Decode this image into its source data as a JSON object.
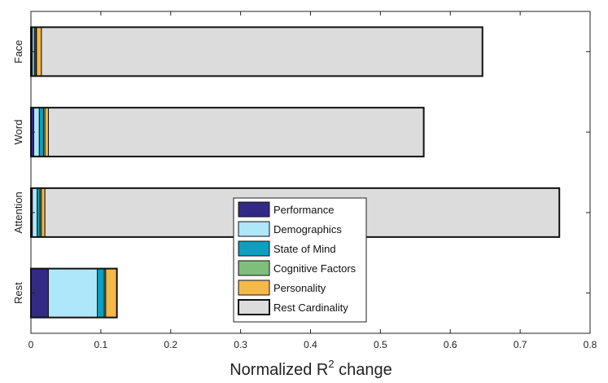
{
  "chart_data": {
    "type": "bar",
    "orientation": "horizontal",
    "stacked": true,
    "title": "",
    "xlabel": "Normalized R",
    "xlabel_superscript": "2",
    "xlabel_suffix": " change",
    "ylabel": "",
    "xlim": [
      0,
      0.8
    ],
    "xticks": [
      "0",
      "0.1",
      "0.2",
      "0.3",
      "0.4",
      "0.5",
      "0.6",
      "0.7",
      "0.8"
    ],
    "categories": [
      "Face",
      "Word",
      "Attention",
      "Rest"
    ],
    "series": [
      {
        "name": "Performance",
        "color": "#332a86",
        "values": [
          0.002,
          0.004,
          0.002,
          0.025
        ]
      },
      {
        "name": "Demographics",
        "color": "#aee6fa",
        "values": [
          0.003,
          0.008,
          0.007,
          0.07
        ]
      },
      {
        "name": "State of Mind",
        "color": "#0aa0be",
        "values": [
          0.002,
          0.006,
          0.004,
          0.01
        ]
      },
      {
        "name": "Cognitive Factors",
        "color": "#7fbf7b",
        "values": [
          0.001,
          0.002,
          0.002,
          0.002
        ]
      },
      {
        "name": "Personality",
        "color": "#f5b94a",
        "values": [
          0.007,
          0.005,
          0.005,
          0.016
        ]
      },
      {
        "name": "Rest Cardinality",
        "color": "#dcdcdc",
        "values": [
          0.631,
          0.537,
          0.736,
          0.0
        ]
      }
    ],
    "legend_position": "center-bottom"
  }
}
